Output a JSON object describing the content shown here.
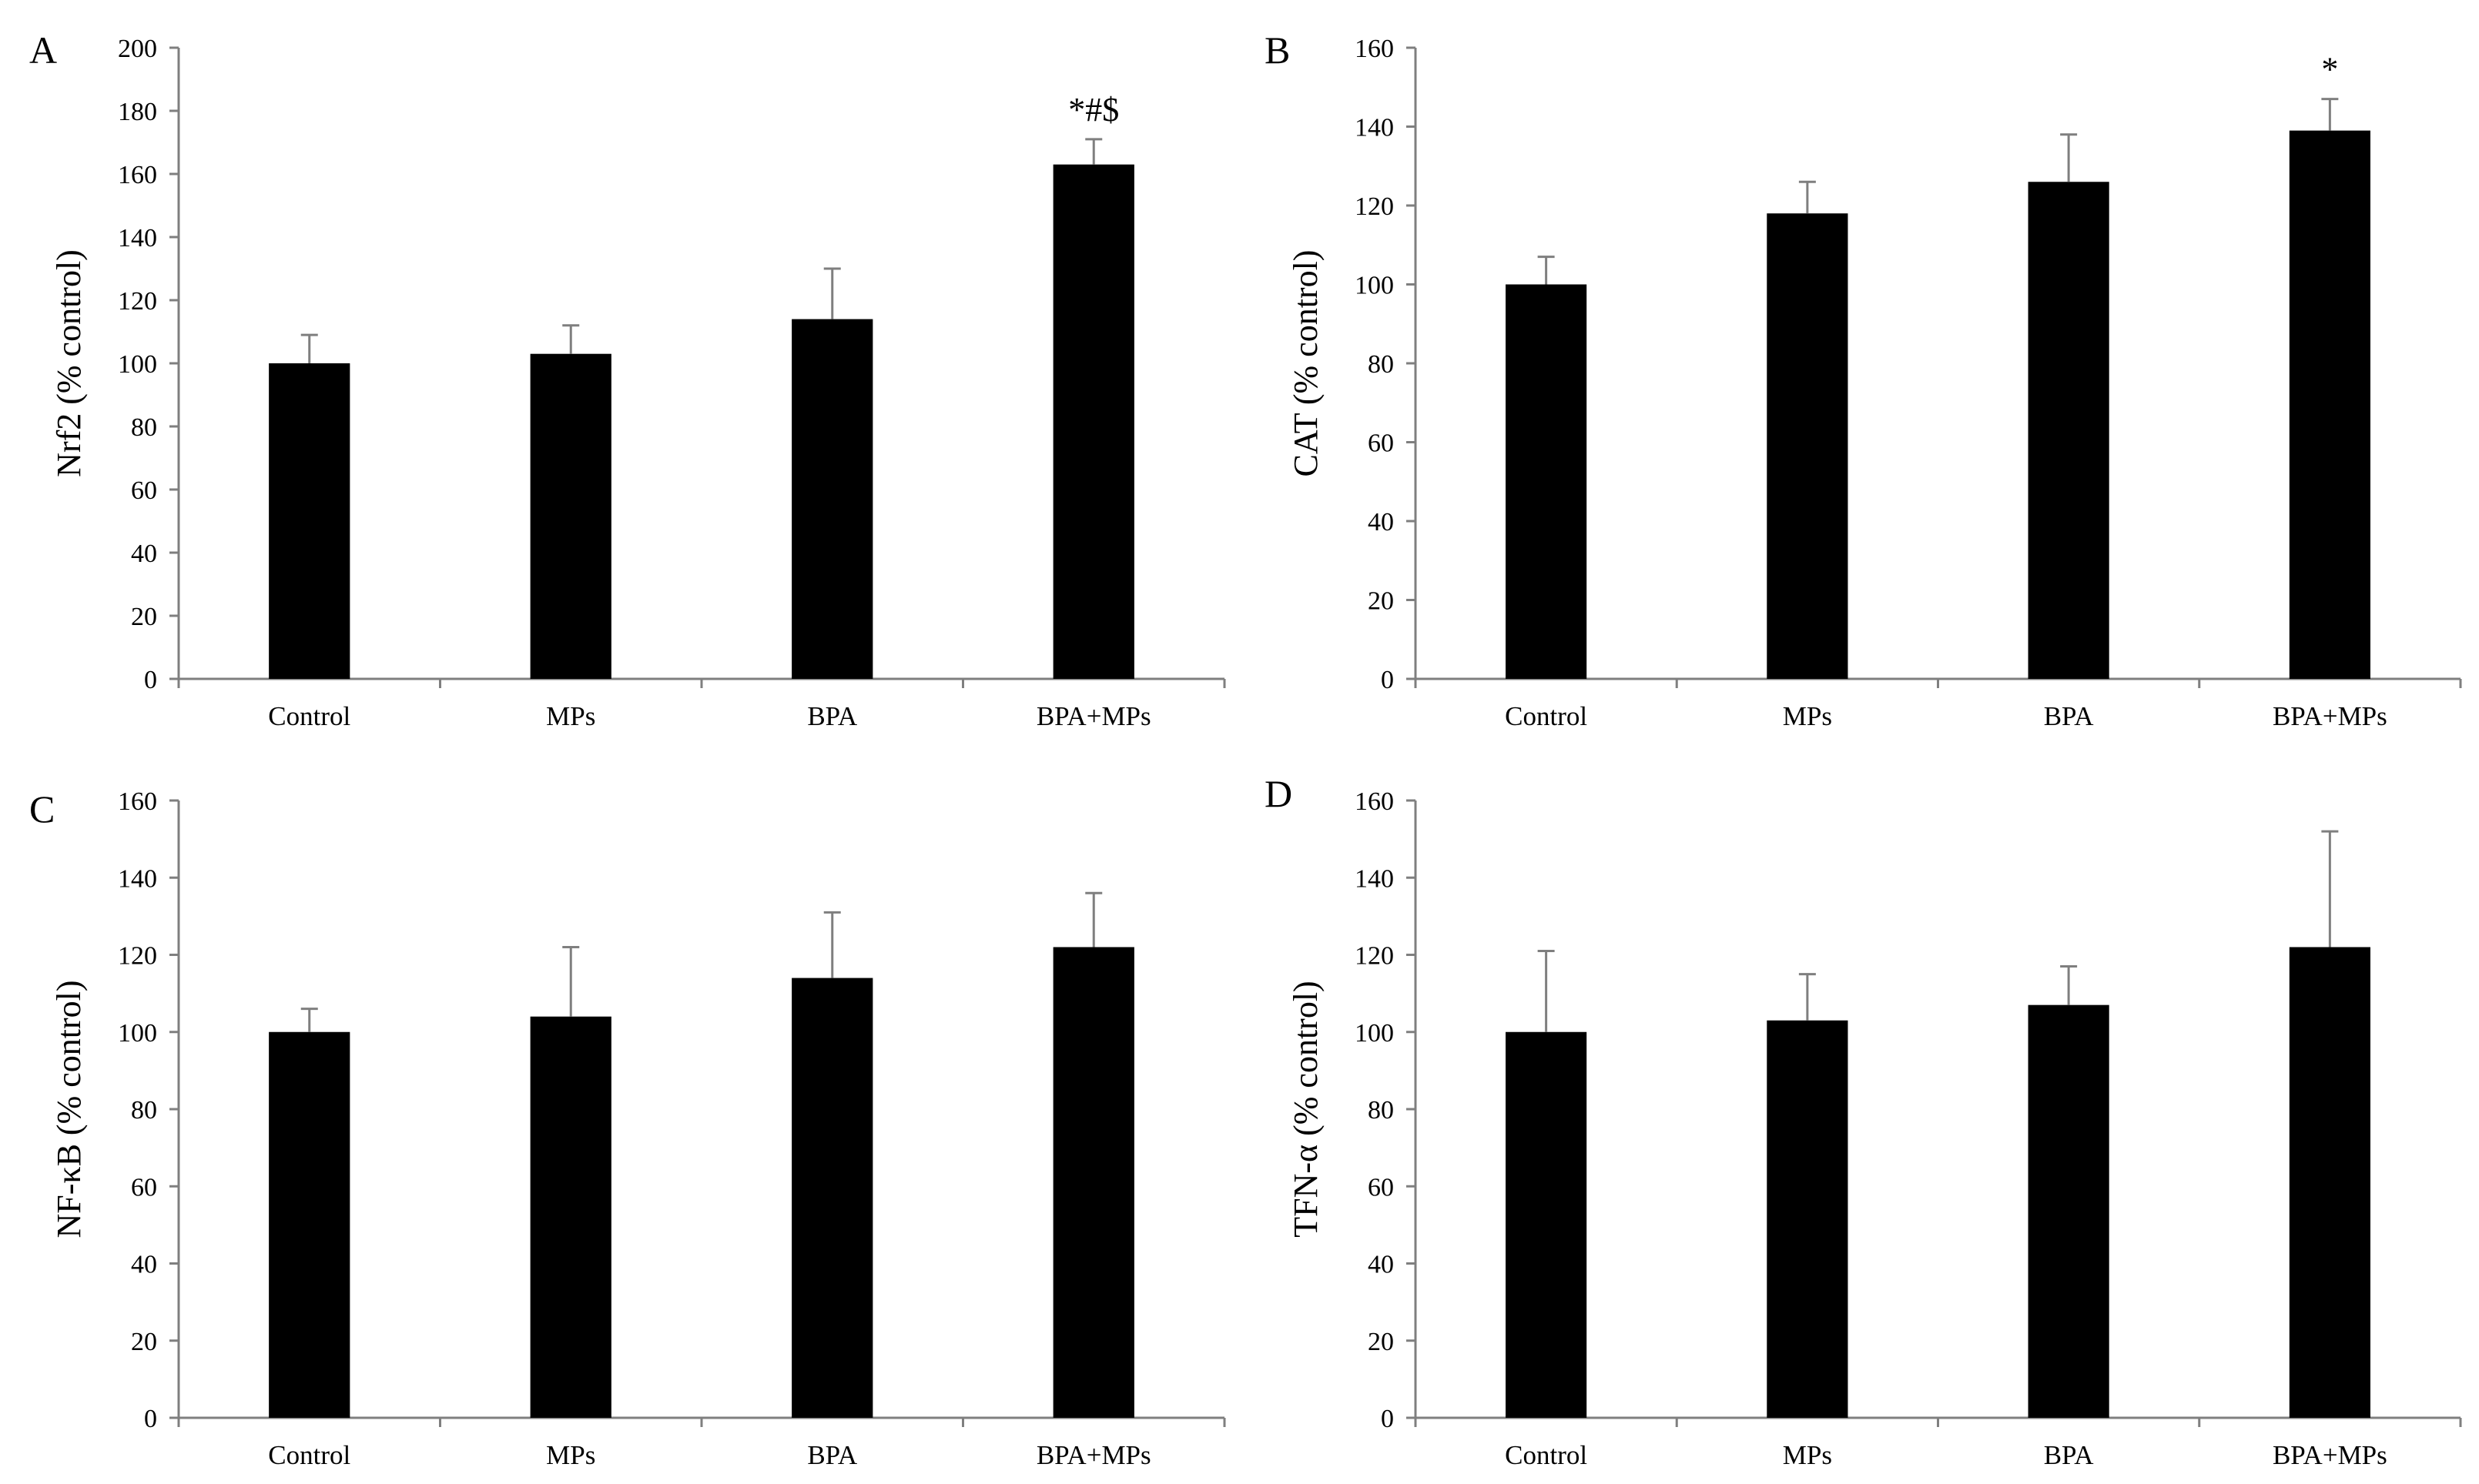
{
  "figure": {
    "panels": [
      {
        "id": "A",
        "letter": "A"
      },
      {
        "id": "B",
        "letter": "B"
      },
      {
        "id": "C",
        "letter": "C"
      },
      {
        "id": "D",
        "letter": "D"
      }
    ]
  },
  "chart_data": [
    {
      "panel": "A",
      "type": "bar",
      "title": "",
      "xlabel": "",
      "ylabel": "Nrf2 (% control)",
      "categories": [
        "Control",
        "MPs",
        "BPA",
        "BPA+MPs"
      ],
      "values": [
        100,
        103,
        114,
        163
      ],
      "error_upper": [
        9,
        9,
        16,
        8
      ],
      "annotations": [
        "",
        "",
        "",
        "*#$"
      ],
      "ylim": [
        0,
        200
      ],
      "yticks": [
        0,
        20,
        40,
        60,
        80,
        100,
        120,
        140,
        160,
        180,
        200
      ],
      "bar_color": "#000000",
      "error_color": "#7f7f7f",
      "grid": false,
      "legend": "none"
    },
    {
      "panel": "B",
      "type": "bar",
      "title": "",
      "xlabel": "",
      "ylabel": "CAT (% control)",
      "categories": [
        "Control",
        "MPs",
        "BPA",
        "BPA+MPs"
      ],
      "values": [
        100,
        118,
        126,
        139
      ],
      "error_upper": [
        7,
        8,
        12,
        8
      ],
      "annotations": [
        "",
        "",
        "",
        "*"
      ],
      "ylim": [
        0,
        160
      ],
      "yticks": [
        0,
        20,
        40,
        60,
        80,
        100,
        120,
        140,
        160
      ],
      "bar_color": "#000000",
      "error_color": "#7f7f7f",
      "grid": false,
      "legend": "none"
    },
    {
      "panel": "C",
      "type": "bar",
      "title": "",
      "xlabel": "",
      "ylabel": "NF-κB (% control)",
      "categories": [
        "Control",
        "MPs",
        "BPA",
        "BPA+MPs"
      ],
      "values": [
        100,
        104,
        114,
        122
      ],
      "error_upper": [
        6,
        18,
        17,
        14
      ],
      "annotations": [
        "",
        "",
        "",
        ""
      ],
      "ylim": [
        0,
        160
      ],
      "yticks": [
        0,
        20,
        40,
        60,
        80,
        100,
        120,
        140,
        160
      ],
      "bar_color": "#000000",
      "error_color": "#7f7f7f",
      "grid": false,
      "legend": "none"
    },
    {
      "panel": "D",
      "type": "bar",
      "title": "",
      "xlabel": "",
      "ylabel": "TFN-α (% control)",
      "categories": [
        "Control",
        "MPs",
        "BPA",
        "BPA+MPs"
      ],
      "values": [
        100,
        103,
        107,
        122
      ],
      "error_upper": [
        21,
        12,
        10,
        30
      ],
      "annotations": [
        "",
        "",
        "",
        ""
      ],
      "ylim": [
        0,
        160
      ],
      "yticks": [
        0,
        20,
        40,
        60,
        80,
        100,
        120,
        140,
        160
      ],
      "bar_color": "#000000",
      "error_color": "#7f7f7f",
      "grid": false,
      "legend": "none"
    }
  ]
}
